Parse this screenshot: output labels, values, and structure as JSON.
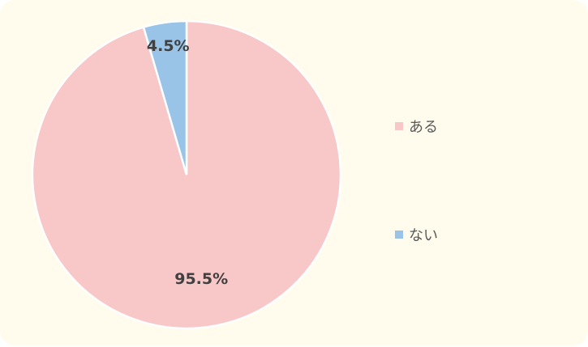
{
  "chart_data": {
    "type": "pie",
    "start_angle": "12 o'clock, clockwise",
    "slices": [
      {
        "name": "ある",
        "value": 95.5,
        "label": "95.5%",
        "color": "#f8c8c8"
      },
      {
        "name": "ない",
        "value": 4.5,
        "label": "4.5%",
        "color": "#99c4e8"
      }
    ],
    "legend": {
      "placement": "right"
    }
  },
  "colors": {
    "background": "#fffcee",
    "slice_border": "#ffffff",
    "label_text": "#404040",
    "legend_text": "#595959"
  }
}
